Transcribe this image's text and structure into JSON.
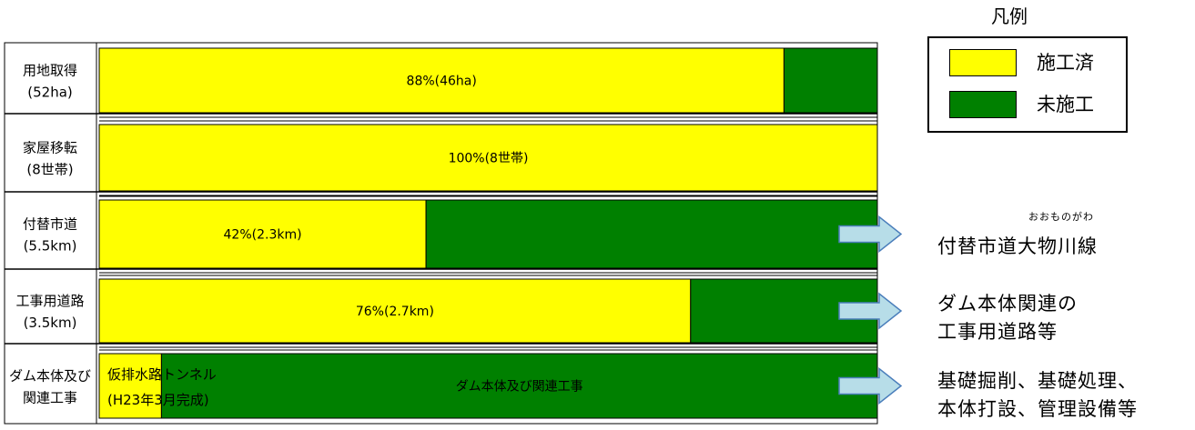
{
  "chart_data": {
    "type": "bar",
    "orientation": "horizontal",
    "stacked": true,
    "categories": [
      [
        "用地取得",
        "(52ha)"
      ],
      [
        "家屋移転",
        "(8世帯)"
      ],
      [
        "付替市道",
        "(5.5km)"
      ],
      [
        "工事用道路",
        "(3.5km)"
      ],
      [
        "ダム本体及び",
        "関連工事"
      ]
    ],
    "series": [
      {
        "name": "施工済",
        "color": "#ffff00",
        "values": [
          88,
          100,
          42,
          76,
          8
        ]
      },
      {
        "name": "未施工",
        "color": "#008000",
        "values": [
          12,
          0,
          58,
          24,
          92
        ]
      }
    ],
    "xlim": [
      0,
      100
    ],
    "data_labels": [
      {
        "text": "88%(46ha)",
        "series": "施工済"
      },
      {
        "text": "100%(8世帯)",
        "series": "施工済"
      },
      {
        "text": "42%(2.3km)",
        "series": "施工済"
      },
      {
        "text": "76%(2.7km)",
        "series": "施工済"
      },
      {
        "text": "ダム本体及び関連工事",
        "series": "未施工"
      }
    ],
    "row_notes": [
      {
        "row": 4,
        "lines": [
          "仮排水路トンネル",
          "(H23年3月完成)"
        ]
      }
    ]
  },
  "legend": {
    "title": "凡例",
    "items": [
      {
        "label": "施工済",
        "color": "#ffff00"
      },
      {
        "label": "未施工",
        "color": "#008000"
      }
    ]
  },
  "side_notes": [
    {
      "row": 2,
      "ruby": "おおものがわ",
      "lines": [
        "付替市道大物川線"
      ]
    },
    {
      "row": 3,
      "lines": [
        "ダム本体関連の",
        "工事用道路等"
      ]
    },
    {
      "row": 4,
      "lines": [
        "基礎掘削、基礎処理、",
        "本体打設、管理設備等"
      ]
    }
  ],
  "colors": {
    "arrow_fill": "#b7dde8",
    "arrow_stroke": "#4a7ebb",
    "frame": "#000000"
  },
  "icons": [
    "right-arrow-icon"
  ]
}
